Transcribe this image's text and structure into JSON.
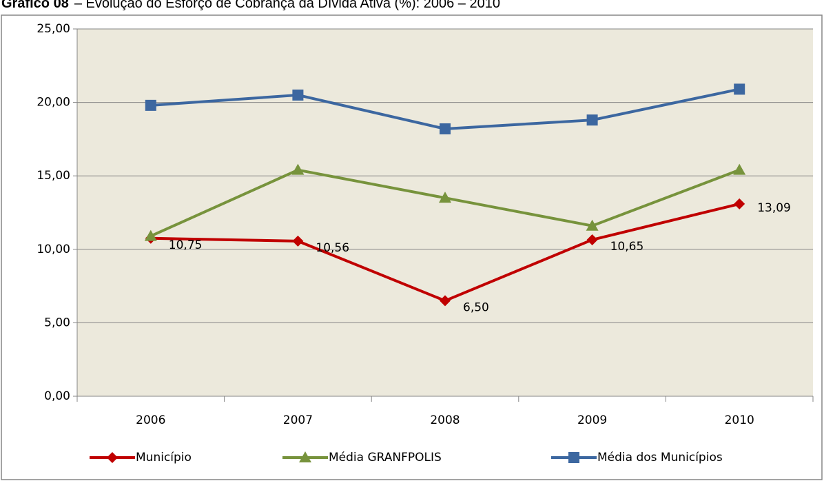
{
  "chart_data": {
    "type": "line",
    "title_prefix": "Gráfico 08",
    "title": "– Evolução do Esforço de Cobrança da Dívida Ativa (%): 2006 – 2010",
    "categories": [
      "2006",
      "2007",
      "2008",
      "2009",
      "2010"
    ],
    "series": [
      {
        "name": "Município",
        "color": "#c00000",
        "marker": "diamond",
        "values": [
          10.75,
          10.56,
          6.5,
          10.65,
          13.09
        ],
        "value_labels": [
          "10,75",
          "10,56",
          "6,50",
          "10,65",
          "13,09"
        ]
      },
      {
        "name": "Média GRANFPOLIS",
        "color": "#77933c",
        "marker": "triangle",
        "values": [
          10.9,
          15.4,
          13.5,
          11.6,
          15.4
        ]
      },
      {
        "name": "Média dos Municípios",
        "color": "#3c67a0",
        "marker": "square",
        "values": [
          19.8,
          20.5,
          18.2,
          18.8,
          20.9
        ]
      }
    ],
    "ylim": [
      0,
      25
    ],
    "yticks": [
      {
        "value": 0,
        "label": "0,00"
      },
      {
        "value": 5,
        "label": "5,00"
      },
      {
        "value": 10,
        "label": "10,00"
      },
      {
        "value": 15,
        "label": "15,00"
      },
      {
        "value": 20,
        "label": "20,00"
      },
      {
        "value": 25,
        "label": "25,00"
      }
    ],
    "grid": true,
    "legend": "bottom"
  }
}
